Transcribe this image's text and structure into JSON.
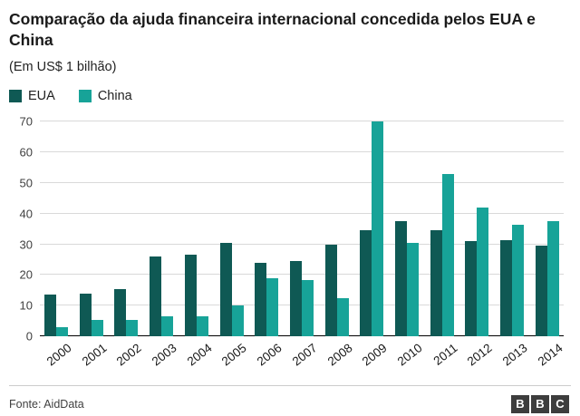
{
  "title": "Comparação da ajuda financeira internacional concedida pelos EUA e China",
  "subtitle": "(Em US$ 1 bilhão)",
  "footer": {
    "source": "Fonte: AidData",
    "logo_letters": [
      "B",
      "B",
      "C"
    ]
  },
  "colors": {
    "eua": "#0f5954",
    "china": "#17a398",
    "gridline": "#d9d9d9",
    "axis": "#000000"
  },
  "chart_data": {
    "type": "bar",
    "title": "Comparação da ajuda financeira internacional concedida pelos EUA e China",
    "subtitle": "(Em US$ 1 bilhão)",
    "categories": [
      "2000",
      "2001",
      "2002",
      "2003",
      "2004",
      "2005",
      "2006",
      "2007",
      "2008",
      "2009",
      "2010",
      "2011",
      "2012",
      "2013",
      "2014"
    ],
    "series": [
      {
        "name": "EUA",
        "color": "#0f5954",
        "values": [
          13.5,
          14,
          15.5,
          26,
          26.5,
          30.5,
          24,
          24.5,
          30,
          34.5,
          37.5,
          34.5,
          31,
          31.5,
          29.5
        ]
      },
      {
        "name": "China",
        "color": "#17a398",
        "values": [
          3,
          5.5,
          5.5,
          6.5,
          6.5,
          10,
          19,
          18.5,
          12.5,
          70,
          30.5,
          53,
          42,
          36.5,
          37.5
        ]
      }
    ],
    "xlabel": "",
    "ylabel": "",
    "ylim": [
      0,
      70
    ],
    "yticks": [
      0,
      10,
      20,
      30,
      40,
      50,
      60,
      70
    ],
    "grid": true,
    "legend_position": "top-left"
  }
}
